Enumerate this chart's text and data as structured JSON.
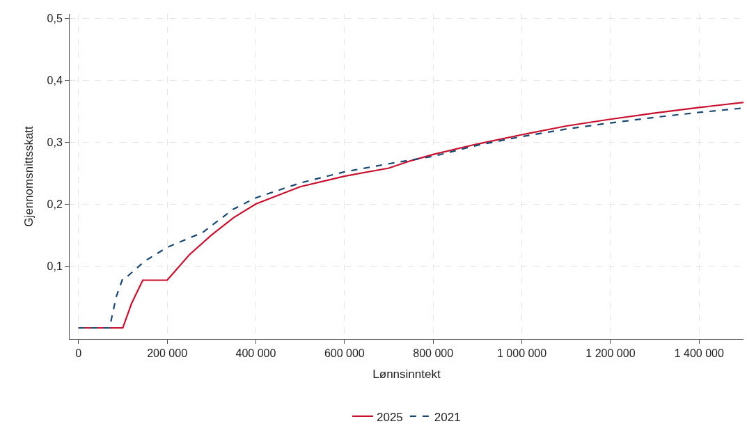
{
  "chart_data": {
    "type": "line",
    "xlabel": "Lønnsinntekt",
    "ylabel": "Gjennomsnittsskatt",
    "xlim": [
      -20000,
      1500000
    ],
    "ylim": [
      -0.018,
      0.507
    ],
    "xticks": [
      {
        "value": 0,
        "label": "0"
      },
      {
        "value": 200000,
        "label": "200 000"
      },
      {
        "value": 400000,
        "label": "400 000"
      },
      {
        "value": 600000,
        "label": "600 000"
      },
      {
        "value": 800000,
        "label": "800 000"
      },
      {
        "value": 1000000,
        "label": "1 000 000"
      },
      {
        "value": 1200000,
        "label": "1 200 000"
      },
      {
        "value": 1400000,
        "label": "1 400 000"
      }
    ],
    "yticks": [
      {
        "value": 0.1,
        "label": "0,1"
      },
      {
        "value": 0.2,
        "label": "0,2"
      },
      {
        "value": 0.3,
        "label": "0,3"
      },
      {
        "value": 0.4,
        "label": "0,4"
      },
      {
        "value": 0.5,
        "label": "0,5"
      }
    ],
    "grid": true,
    "legend": "bottom",
    "series": [
      {
        "name": "2025",
        "color": "#c8102e",
        "line_style": "solid",
        "x": [
          0,
          100000,
          120000,
          145000,
          200000,
          250000,
          300000,
          350000,
          400000,
          500000,
          600000,
          700000,
          750000,
          800000,
          900000,
          1000000,
          1100000,
          1200000,
          1300000,
          1400000,
          1500000
        ],
        "values": [
          0,
          0,
          0.04,
          0.077,
          0.077,
          0.118,
          0.15,
          0.178,
          0.2,
          0.228,
          0.245,
          0.258,
          0.27,
          0.28,
          0.297,
          0.312,
          0.326,
          0.337,
          0.347,
          0.356,
          0.364
        ]
      },
      {
        "name": "2021",
        "color": "#1a476f",
        "line_style": "dashed",
        "x": [
          0,
          70000,
          85000,
          100000,
          110000,
          150000,
          200000,
          280000,
          300000,
          350000,
          400000,
          500000,
          600000,
          700000,
          800000,
          900000,
          1000000,
          1100000,
          1200000,
          1300000,
          1400000,
          1500000
        ],
        "values": [
          0,
          0,
          0.05,
          0.08,
          0.083,
          0.108,
          0.13,
          0.154,
          0.165,
          0.192,
          0.21,
          0.234,
          0.252,
          0.265,
          0.277,
          0.295,
          0.309,
          0.321,
          0.331,
          0.34,
          0.348,
          0.355
        ]
      }
    ]
  }
}
